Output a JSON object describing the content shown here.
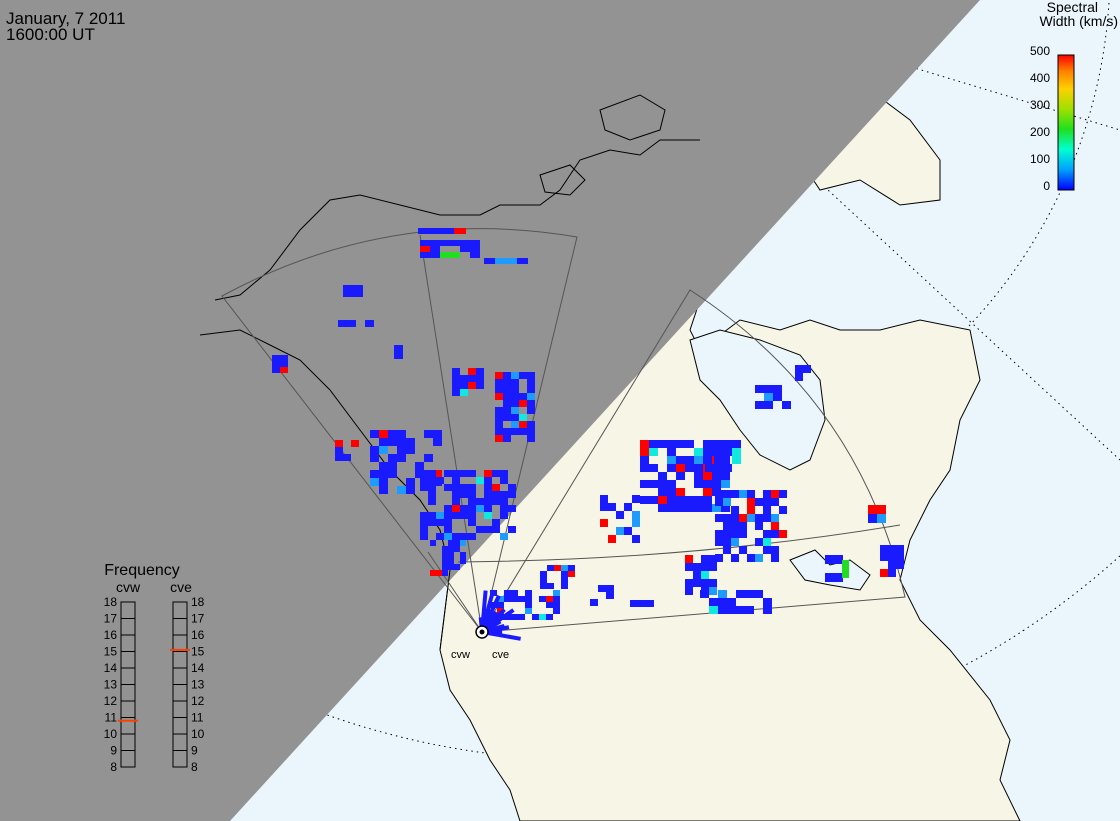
{
  "header": {
    "date": "January, 7 2011",
    "time": "1600:00 UT"
  },
  "colorbar": {
    "title_line1": "Spectral",
    "title_line2": "Width (km/s)",
    "ticks": [
      "500",
      "400",
      "300",
      "200",
      "100",
      "0"
    ],
    "colors": [
      "#0000ff",
      "#00a0ff",
      "#00ffd0",
      "#20e020",
      "#a0e000",
      "#ffd000",
      "#ff8000",
      "#ff0000"
    ]
  },
  "frequency_panel": {
    "title": "Frequency",
    "columns": [
      {
        "name": "cvw",
        "selected_mhz": 10.8
      },
      {
        "name": "cve",
        "selected_mhz": 15.1
      }
    ],
    "levels": [
      "18",
      "17",
      "16",
      "15",
      "14",
      "13",
      "12",
      "11",
      "10",
      "9",
      "8"
    ]
  },
  "radar_sites": [
    {
      "name": "cvw"
    },
    {
      "name": "cve"
    }
  ],
  "colors": {
    "night": "#939393",
    "ocean_day": "#eaf6fc",
    "land_day": "#f7f5e6",
    "scatter_high": "#ff0000",
    "scatter_low": "#1a1aff",
    "scatter_mid": "#1e9bff",
    "scatter_cyan": "#10e8e0",
    "scatter_green": "#22dd22",
    "freq_marker": "#ff4000"
  }
}
